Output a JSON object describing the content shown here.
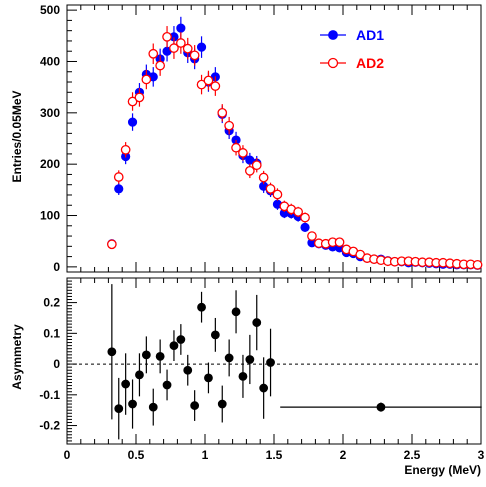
{
  "chart_data": [
    {
      "type": "scatter",
      "panel": "top",
      "ylabel": "Entries/0.05MeV",
      "xlim": [
        0,
        3
      ],
      "ylim": [
        -10,
        510
      ],
      "yticks": [
        "0",
        "100",
        "200",
        "300",
        "400",
        "500"
      ],
      "grid": false,
      "legend_position": "top-right",
      "series": [
        {
          "name": "AD1",
          "color": "#0000ff",
          "marker": "filled-circle",
          "x": [
            0.325,
            0.375,
            0.425,
            0.475,
            0.525,
            0.575,
            0.625,
            0.675,
            0.725,
            0.775,
            0.825,
            0.875,
            0.925,
            0.975,
            1.025,
            1.075,
            1.125,
            1.175,
            1.225,
            1.275,
            1.325,
            1.375,
            1.425,
            1.475,
            1.525,
            1.575,
            1.625,
            1.675,
            1.725,
            1.775,
            1.825,
            1.875,
            1.925,
            1.975,
            2.025,
            2.075,
            2.125,
            2.175,
            2.225,
            2.275,
            2.325,
            2.375,
            2.425,
            2.475,
            2.525,
            2.575,
            2.625,
            2.675,
            2.725,
            2.775,
            2.825,
            2.875,
            2.925,
            2.975
          ],
          "y": [
            45,
            152,
            215,
            282,
            340,
            375,
            370,
            405,
            420,
            448,
            465,
            417,
            405,
            428,
            360,
            370,
            297,
            265,
            247,
            217,
            208,
            202,
            157,
            148,
            122,
            105,
            104,
            98,
            77,
            47,
            45,
            42,
            39,
            37,
            28,
            26,
            20,
            17,
            15,
            15,
            12,
            10,
            10,
            8,
            9,
            8,
            7,
            6,
            5,
            5,
            4,
            4,
            4,
            3
          ],
          "yerr": [
            7,
            12,
            15,
            17,
            18,
            19,
            19,
            20,
            20,
            21,
            22,
            20,
            20,
            21,
            19,
            19,
            17,
            16,
            16,
            15,
            14,
            14,
            13,
            12,
            11,
            10,
            10,
            10,
            9,
            7,
            7,
            6,
            6,
            6,
            5,
            5,
            4,
            4,
            4,
            4,
            3,
            3,
            3,
            3,
            3,
            3,
            3,
            2,
            2,
            2,
            2,
            2,
            2,
            2
          ]
        },
        {
          "name": "AD2",
          "color": "#ff0000",
          "marker": "open-circle",
          "x": [
            0.325,
            0.375,
            0.425,
            0.475,
            0.525,
            0.575,
            0.625,
            0.675,
            0.725,
            0.775,
            0.825,
            0.875,
            0.925,
            0.975,
            1.025,
            1.075,
            1.125,
            1.175,
            1.225,
            1.275,
            1.325,
            1.375,
            1.425,
            1.475,
            1.525,
            1.575,
            1.625,
            1.675,
            1.725,
            1.775,
            1.825,
            1.875,
            1.925,
            1.975,
            2.025,
            2.075,
            2.125,
            2.175,
            2.225,
            2.275,
            2.325,
            2.375,
            2.425,
            2.475,
            2.525,
            2.575,
            2.625,
            2.675,
            2.725,
            2.775,
            2.825,
            2.875,
            2.925,
            2.975
          ],
          "y": [
            44,
            175,
            228,
            322,
            330,
            365,
            415,
            392,
            448,
            426,
            436,
            425,
            412,
            355,
            363,
            352,
            300,
            275,
            232,
            222,
            187,
            198,
            174,
            152,
            141,
            118,
            112,
            107,
            96,
            60,
            46,
            45,
            48,
            48,
            34,
            30,
            24,
            17,
            15,
            13,
            11,
            10,
            11,
            11,
            10,
            9,
            9,
            8,
            8,
            7,
            6,
            5,
            5,
            4
          ],
          "yerr": [
            7,
            13,
            15,
            18,
            18,
            19,
            20,
            20,
            21,
            21,
            21,
            21,
            20,
            19,
            19,
            19,
            17,
            17,
            15,
            15,
            14,
            14,
            13,
            12,
            12,
            11,
            11,
            10,
            10,
            8,
            7,
            7,
            7,
            7,
            6,
            5,
            5,
            4,
            4,
            4,
            3,
            3,
            3,
            3,
            3,
            3,
            3,
            3,
            3,
            3,
            2,
            2,
            2,
            2
          ]
        }
      ]
    },
    {
      "type": "scatter",
      "panel": "bottom",
      "xlabel": "Energy (MeV)",
      "ylabel": "Asymmetry",
      "xlim": [
        0,
        3
      ],
      "ylim": [
        -0.26,
        0.28
      ],
      "xticks": [
        "0",
        "0.5",
        "1",
        "1.5",
        "2",
        "2.5",
        "3"
      ],
      "yticks": [
        "-0.2",
        "-0.1",
        "0",
        "0.1",
        "0.2"
      ],
      "reference_line": 0,
      "series": [
        {
          "color": "#000000",
          "marker": "filled-circle",
          "x": [
            0.325,
            0.375,
            0.425,
            0.475,
            0.525,
            0.575,
            0.625,
            0.675,
            0.725,
            0.775,
            0.825,
            0.875,
            0.925,
            0.975,
            1.025,
            1.075,
            1.125,
            1.175,
            1.225,
            1.275,
            1.325,
            1.375,
            1.425,
            1.475,
            2.275
          ],
          "y": [
            0.04,
            -0.145,
            -0.065,
            -0.13,
            -0.035,
            0.03,
            -0.14,
            0.025,
            -0.068,
            0.06,
            0.08,
            -0.02,
            -0.135,
            0.185,
            -0.045,
            0.095,
            -0.13,
            0.02,
            0.17,
            -0.04,
            0.015,
            0.135,
            -0.078,
            0.005,
            -0.14
          ],
          "yerr": [
            0.22,
            0.1,
            0.1,
            0.08,
            0.07,
            0.06,
            0.06,
            0.055,
            0.05,
            0.05,
            0.05,
            0.05,
            0.05,
            0.05,
            0.05,
            0.055,
            0.06,
            0.06,
            0.07,
            0.07,
            0.08,
            0.09,
            0.1,
            0.11,
            0.015
          ],
          "xerr": [
            0,
            0,
            0,
            0,
            0,
            0,
            0,
            0,
            0,
            0,
            0,
            0,
            0,
            0,
            0,
            0,
            0,
            0,
            0,
            0,
            0,
            0,
            0,
            0,
            0.73
          ]
        }
      ]
    }
  ]
}
